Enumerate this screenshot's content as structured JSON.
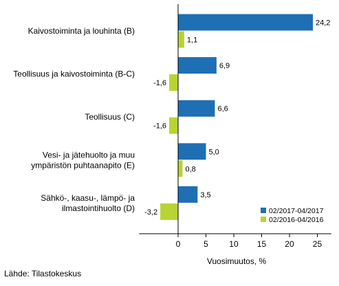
{
  "chart_data": {
    "type": "bar",
    "orientation": "horizontal",
    "categories": [
      [
        "Kaivostoiminta ja louhinta (B)"
      ],
      [
        "Teollisuus ja kaivostoiminta (B-C)"
      ],
      [
        "Teollisuus (C)"
      ],
      [
        "Vesi- ja jätehuolto ja muu",
        "ympäristön puhtaanapito (E)"
      ],
      [
        "Sähkö-, kaasu-, lämpö- ja",
        "ilmastointihuolto (D)"
      ]
    ],
    "series": [
      {
        "name": "02/2017-04/2017",
        "color": "#1f6fb4",
        "values": [
          24.2,
          6.9,
          6.6,
          5.0,
          3.5
        ],
        "labels": [
          "24,2",
          "6,9",
          "6,6",
          "5,0",
          "3,5"
        ]
      },
      {
        "name": "02/2016-04/2016",
        "color": "#b8d432",
        "values": [
          1.1,
          -1.6,
          -1.6,
          0.8,
          -3.2
        ],
        "labels": [
          "1,1",
          "-1,6",
          "-1,6",
          "0,8",
          "-3,2"
        ]
      }
    ],
    "xticks": [
      0,
      5,
      10,
      15,
      20,
      25
    ],
    "xticklabels": [
      "0",
      "5",
      "10",
      "15",
      "20",
      "25"
    ],
    "xlim": [
      -7,
      27.5
    ],
    "xlabel": "Vuosimuutos, %",
    "grid": false,
    "legend_position": "bottom-right"
  },
  "source": "Lähde: Tilastokeskus"
}
